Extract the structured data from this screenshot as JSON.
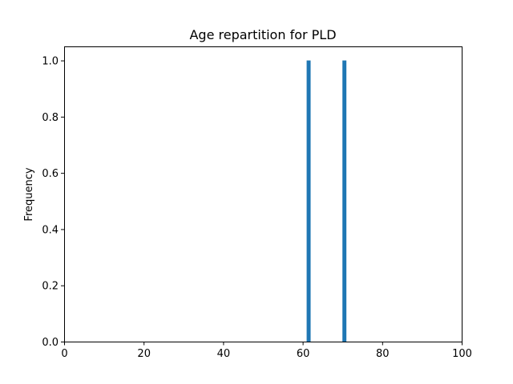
{
  "chart_data": {
    "type": "bar",
    "title": "Age repartition for PLD",
    "xlabel": "",
    "ylabel": "Frequency",
    "xlim": [
      0,
      100
    ],
    "ylim": [
      0,
      1.05
    ],
    "x_ticks": [
      0,
      20,
      40,
      60,
      80,
      100
    ],
    "y_ticks": [
      "0.0",
      "0.2",
      "0.4",
      "0.6",
      "0.8",
      "1.0"
    ],
    "bars": [
      {
        "x_start": 61,
        "x_end": 62,
        "value": 1.0
      },
      {
        "x_start": 70,
        "x_end": 71,
        "value": 1.0
      }
    ],
    "grid": false,
    "bar_color": "#1f77b4"
  }
}
